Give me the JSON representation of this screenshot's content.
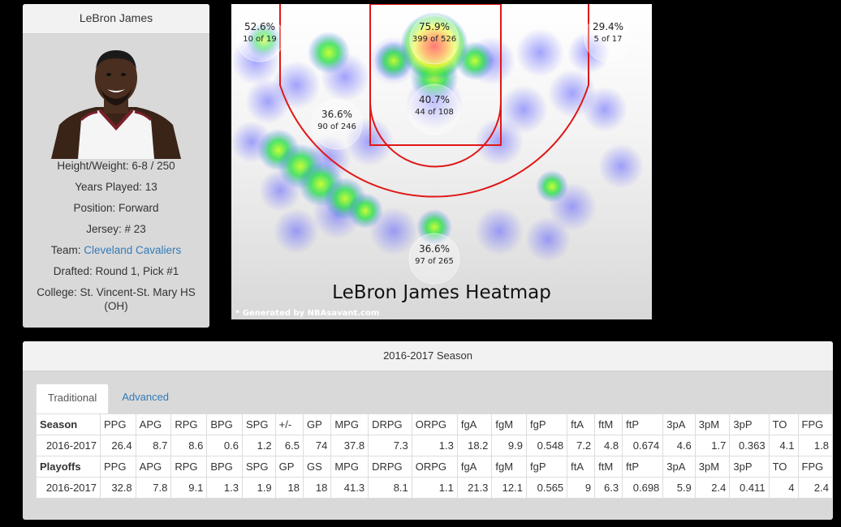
{
  "player": {
    "name": "LeBron James",
    "height_weight": "Height/Weight: 6-8 / 250",
    "years_played": "Years Played: 13",
    "position": "Position: Forward",
    "jersey": "Jersey: # 23",
    "team_prefix": "Team: ",
    "team_name": "Cleveland Cavaliers",
    "drafted": "Drafted: Round 1, Pick #1",
    "college": "College: St. Vincent-St. Mary HS (OH)"
  },
  "heatmap": {
    "title": "LeBron James Heatmap",
    "credit": "* Generated by NBAsavant.com",
    "zones": [
      {
        "pct": "52.6%",
        "count": "10 of 19"
      },
      {
        "pct": "75.9%",
        "count": "399 of 526"
      },
      {
        "pct": "29.4%",
        "count": "5 of 17"
      },
      {
        "pct": "36.6%",
        "count": "90 of 246"
      },
      {
        "pct": "40.7%",
        "count": "44 of 108"
      },
      {
        "pct": "36.6%",
        "count": "97 of 265"
      }
    ]
  },
  "stats": {
    "season_title": "2016-2017 Season",
    "tabs": [
      "Traditional",
      "Advanced"
    ],
    "season_headers": [
      "Season",
      "PPG",
      "APG",
      "RPG",
      "BPG",
      "SPG",
      "+/-",
      "GP",
      "MPG",
      "DRPG",
      "ORPG",
      "fgA",
      "fgM",
      "fgP",
      "ftA",
      "ftM",
      "ftP",
      "3pA",
      "3pM",
      "3pP",
      "TO",
      "FPG"
    ],
    "season_row": [
      "2016-2017",
      "26.4",
      "8.7",
      "8.6",
      "0.6",
      "1.2",
      "6.5",
      "74",
      "37.8",
      "7.3",
      "1.3",
      "18.2",
      "9.9",
      "0.548",
      "7.2",
      "4.8",
      "0.674",
      "4.6",
      "1.7",
      "0.363",
      "4.1",
      "1.8"
    ],
    "playoff_headers": [
      "Playoffs",
      "PPG",
      "APG",
      "RPG",
      "BPG",
      "SPG",
      "GP",
      "GS",
      "MPG",
      "DRPG",
      "ORPG",
      "fgA",
      "fgM",
      "fgP",
      "ftA",
      "ftM",
      "ftP",
      "3pA",
      "3pM",
      "3pP",
      "TO",
      "FPG"
    ],
    "playoff_row": [
      "2016-2017",
      "32.8",
      "7.8",
      "9.1",
      "1.3",
      "1.9",
      "18",
      "18",
      "41.3",
      "8.1",
      "1.1",
      "21.3",
      "12.1",
      "0.565",
      "9",
      "6.3",
      "0.698",
      "5.9",
      "2.4",
      "0.411",
      "4",
      "2.4"
    ]
  }
}
